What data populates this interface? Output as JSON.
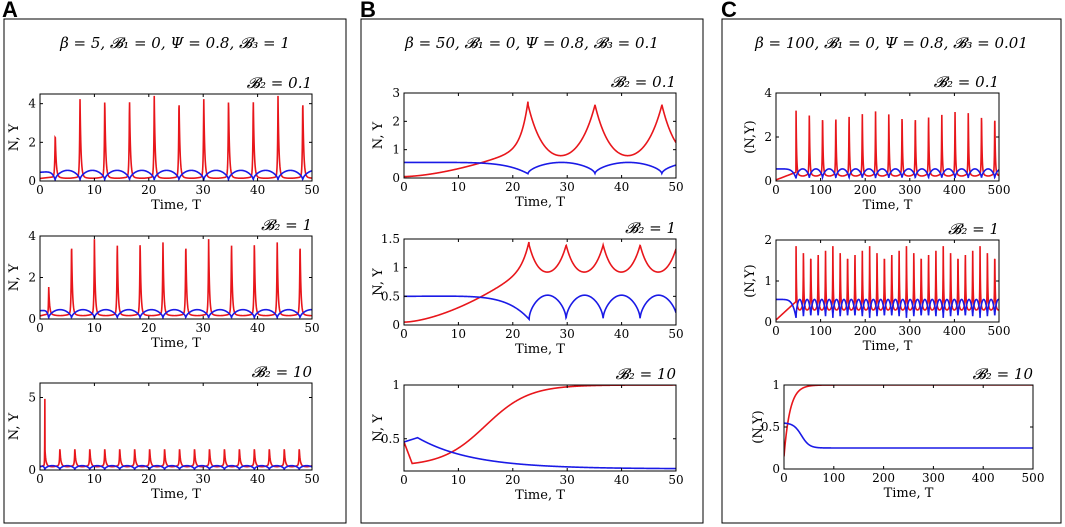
{
  "colors": {
    "N": "#e8161b",
    "Y": "#1a1ae6"
  },
  "chart_data": [
    {
      "panel": "A",
      "condition": "β = 5,  𝓑₁ = 0,  Ψ = 0.8,  𝓑₃ = 1",
      "subplots": [
        {
          "type": "line",
          "title": "𝓑₂ = 0.1",
          "xlabel": "Time, T",
          "ylabel": "N, Y",
          "xlim": [
            0,
            50
          ],
          "ylim": [
            0,
            4.5
          ],
          "xticks": [
            0,
            10,
            20,
            30,
            40,
            50
          ],
          "yticks": [
            0,
            2,
            4
          ],
          "series": [
            {
              "name": "N",
              "dynamics": "spike",
              "first_spike": 2.8,
              "period": 4.55,
              "peak": 4.4,
              "first_peak": 2.5,
              "base": 0.22,
              "decay": 0.5,
              "rise": 0.3
            },
            {
              "name": "Y",
              "dynamics": "oscillate",
              "start": 0.45,
              "max": 0.55,
              "min": 0.05,
              "first_spike": 2.8,
              "period": 4.55
            }
          ]
        },
        {
          "type": "line",
          "title": "𝓑₂ = 1",
          "xlabel": "Time, T",
          "ylabel": "N, Y",
          "xlim": [
            0,
            50
          ],
          "ylim": [
            0,
            4
          ],
          "xticks": [
            0,
            10,
            20,
            30,
            40,
            50
          ],
          "yticks": [
            0,
            2,
            4
          ],
          "series": [
            {
              "name": "N",
              "dynamics": "spike",
              "first_spike": 1.6,
              "period": 4.2,
              "peak": 3.85,
              "first_peak": 1.6,
              "base": 0.25,
              "decay": 0.45,
              "rise": 0.3
            },
            {
              "name": "Y",
              "dynamics": "oscillate",
              "start": 0.4,
              "max": 0.45,
              "min": 0.05,
              "first_spike": 1.6,
              "period": 4.2
            }
          ]
        },
        {
          "type": "line",
          "title": "𝓑₂ = 10",
          "xlabel": "Time, T",
          "ylabel": "N, Y",
          "xlim": [
            0,
            50
          ],
          "ylim": [
            0,
            6
          ],
          "xticks": [
            0,
            10,
            20,
            30,
            40,
            50
          ],
          "yticks": [
            0,
            5
          ],
          "series": [
            {
              "name": "N",
              "dynamics": "spike",
              "first_spike": 0.9,
              "period": 2.75,
              "peak": 1.55,
              "first_peak": 6.0,
              "base": 0.35,
              "decay": 0.45,
              "rise": 0.25
            },
            {
              "name": "Y",
              "dynamics": "oscillate",
              "start": 0.25,
              "max": 0.3,
              "min": 0.05,
              "first_spike": 0.9,
              "period": 2.75
            }
          ]
        }
      ]
    },
    {
      "panel": "B",
      "condition": "β = 50,  𝓑₁ = 0,  Ψ = 0.8,  𝓑₃ = 0.1",
      "subplots": [
        {
          "type": "line",
          "title": "𝓑₂ = 0.1",
          "xlabel": "Time, T",
          "ylabel": "N, Y",
          "xlim": [
            0,
            50
          ],
          "ylim": [
            0,
            3
          ],
          "xticks": [
            0,
            10,
            20,
            30,
            40,
            50
          ],
          "yticks": [
            0,
            1,
            2,
            3
          ],
          "series": [
            {
              "name": "N",
              "dynamics": "cusp",
              "first_spike": 22.8,
              "period": 12.3,
              "peak": 2.85,
              "start": 0.05,
              "base": 0.15,
              "rise": 3.0
            },
            {
              "name": "Y",
              "dynamics": "oscillate",
              "start": 0.55,
              "max": 0.55,
              "min": 0.15,
              "first_spike": 22.8,
              "period": 12.3
            }
          ]
        },
        {
          "type": "line",
          "title": "𝓑₂ = 1",
          "xlabel": "Time, T",
          "ylabel": "N, Y",
          "xlim": [
            0,
            50
          ],
          "ylim": [
            0,
            1.5
          ],
          "xticks": [
            0,
            10,
            20,
            30,
            40,
            50
          ],
          "yticks": [
            0,
            0.5,
            1,
            1.5
          ],
          "series": [
            {
              "name": "N",
              "dynamics": "cusp",
              "first_spike": 23.0,
              "period": 6.8,
              "peak": 1.5,
              "start": 0.05,
              "base": 0.75,
              "rise": 1.8
            },
            {
              "name": "Y",
              "dynamics": "oscillate",
              "start": 0.5,
              "max": 0.52,
              "min": 0.1,
              "first_spike": 23.0,
              "period": 6.8
            }
          ]
        },
        {
          "type": "line",
          "title": "𝓑₂ = 10",
          "xlabel": "Time, T",
          "ylabel": "N, Y",
          "xlim": [
            0,
            50
          ],
          "ylim": [
            0.2,
            1
          ],
          "xticks": [
            0,
            10,
            20,
            30,
            40,
            50
          ],
          "yticks": [
            0.5,
            1
          ],
          "series": [
            {
              "name": "N",
              "dynamics": "sigmoid",
              "start": 0.47,
              "min": 0.27,
              "t_min": 1.5,
              "plateau": 1.0,
              "t_mid": 15
            },
            {
              "name": "Y",
              "dynamics": "decay",
              "start": 0.47,
              "peak": 0.51,
              "t_peak": 2.5,
              "end": 0.22,
              "tau": 10
            }
          ]
        }
      ]
    },
    {
      "panel": "C",
      "condition": "β = 100,  𝓑₁ = 0,  Ψ = 0.8,  𝓑₃ = 0.01",
      "subplots": [
        {
          "type": "line",
          "title": "𝓑₂ = 0.1",
          "xlabel": "Time, T",
          "ylabel": "(N,Y)",
          "xlim": [
            0,
            500
          ],
          "ylim": [
            0,
            4
          ],
          "xticks": [
            0,
            100,
            200,
            300,
            400,
            500
          ],
          "yticks": [
            0,
            2,
            4
          ],
          "series": [
            {
              "name": "N",
              "dynamics": "spike",
              "first_spike": 45,
              "period": 29.7,
              "peak": 3.2,
              "first_peak": 3.2,
              "base": 0.35,
              "decay": 3.5,
              "rise": 2.5,
              "startup": true
            },
            {
              "name": "Y",
              "dynamics": "oscillate",
              "start": 0.55,
              "max": 0.55,
              "min": 0.12,
              "first_spike": 45,
              "period": 29.7
            }
          ]
        },
        {
          "type": "line",
          "title": "𝓑₂ = 1",
          "xlabel": "Time, T",
          "ylabel": "(N,Y)",
          "xlim": [
            0,
            500
          ],
          "ylim": [
            0,
            2
          ],
          "xticks": [
            0,
            100,
            200,
            300,
            400,
            500
          ],
          "yticks": [
            0,
            1,
            2
          ],
          "series": [
            {
              "name": "N",
              "dynamics": "spike",
              "first_spike": 45,
              "period": 16.5,
              "peak": 1.85,
              "first_peak": 1.85,
              "base": 0.45,
              "decay": 2.5,
              "rise": 2.0,
              "startup": true
            },
            {
              "name": "Y",
              "dynamics": "oscillate",
              "start": 0.55,
              "max": 0.55,
              "min": 0.1,
              "first_spike": 45,
              "period": 16.5
            }
          ]
        },
        {
          "type": "line",
          "title": "𝓑₂ = 10",
          "xlabel": "Time, T",
          "ylabel": "(N,Y)",
          "xlim": [
            0,
            500
          ],
          "ylim": [
            0,
            1
          ],
          "xticks": [
            0,
            100,
            200,
            300,
            400,
            500
          ],
          "yticks": [
            0,
            0.5,
            1
          ],
          "series": [
            {
              "name": "N",
              "dynamics": "saturate",
              "start": 0.15,
              "end": 1.0,
              "tau": 12
            },
            {
              "name": "Y",
              "dynamics": "drop",
              "start": 0.55,
              "end": 0.25,
              "t_mid": 35,
              "width": 8
            }
          ]
        }
      ]
    }
  ]
}
